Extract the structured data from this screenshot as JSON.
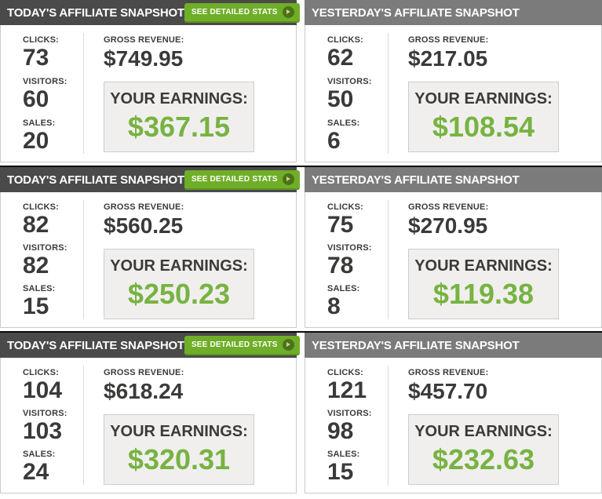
{
  "labels": {
    "clicks": "CLICKS:",
    "visitors": "VISITORS:",
    "sales": "SALES:",
    "gross_revenue": "GROSS REVENUE:",
    "your_earnings": "YOUR EARNINGS:",
    "see_detailed_stats": "SEE DETAILED STATS"
  },
  "colors": {
    "header-dark": "#4a4a4a",
    "header-light": "#7b7b7b",
    "btn-green": "#6fae28",
    "btn-green-dark": "#4e7117",
    "earnings-green": "#77b341",
    "stat-text": "#3b3a39",
    "panel-border": "#cccbca",
    "earnings-box-bg": "#f0efee",
    "row-separator": "#0a0a0a"
  },
  "icons": {
    "stats_button_icon": "play-circle-icon"
  },
  "panels": [
    {
      "title": "TODAY'S AFFILIATE SNAPSHOT",
      "period": "today",
      "clicks": "73",
      "visitors": "60",
      "sales": "20",
      "gross_revenue": "$749.95",
      "earnings": "$367.15"
    },
    {
      "title": "YESTERDAY'S AFFILIATE SNAPSHOT",
      "period": "yesterday",
      "clicks": "62",
      "visitors": "50",
      "sales": "6",
      "gross_revenue": "$217.05",
      "earnings": "$108.54"
    },
    {
      "title": "TODAY'S AFFILIATE SNAPSHOT",
      "period": "today",
      "clicks": "82",
      "visitors": "82",
      "sales": "15",
      "gross_revenue": "$560.25",
      "earnings": "$250.23"
    },
    {
      "title": "YESTERDAY'S AFFILIATE SNAPSHOT",
      "period": "yesterday",
      "clicks": "75",
      "visitors": "78",
      "sales": "8",
      "gross_revenue": "$270.95",
      "earnings": "$119.38"
    },
    {
      "title": "TODAY'S AFFILIATE SNAPSHOT",
      "period": "today",
      "clicks": "104",
      "visitors": "103",
      "sales": "24",
      "gross_revenue": "$618.24",
      "earnings": "$320.31"
    },
    {
      "title": "YESTERDAY'S AFFILIATE SNAPSHOT",
      "period": "yesterday",
      "clicks": "121",
      "visitors": "98",
      "sales": "15",
      "gross_revenue": "$457.70",
      "earnings": "$232.63"
    }
  ]
}
